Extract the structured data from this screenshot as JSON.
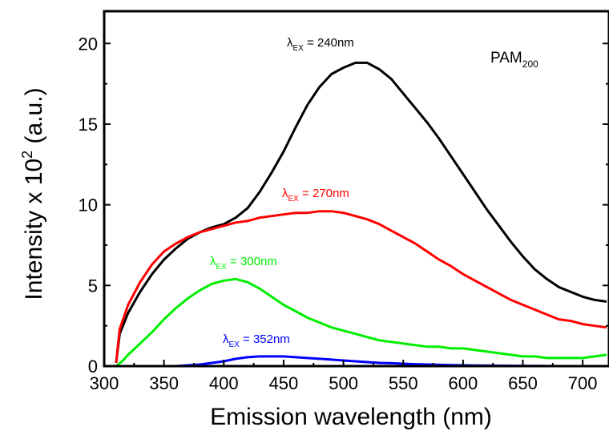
{
  "chart_data": {
    "type": "line",
    "title": "",
    "xlabel": "Emission wavelength (nm)",
    "ylabel_main": "Intensity x 10",
    "ylabel_sup": "2",
    "ylabel_units": " (a.u.)",
    "xlim": [
      300,
      722
    ],
    "ylim": [
      0,
      22
    ],
    "x_ticks": [
      300,
      350,
      400,
      450,
      500,
      550,
      600,
      650,
      700
    ],
    "y_ticks": [
      0,
      5,
      10,
      15,
      20
    ],
    "grid": false,
    "annotation": {
      "main": "PAM",
      "sub": "200"
    },
    "series": [
      {
        "name": "λEX = 240nm",
        "label_prefix": "λ",
        "label_sub": "EX",
        "label_suffix": " = 240nm",
        "color": "#000000",
        "x": [
          310,
          313,
          320,
          330,
          340,
          350,
          360,
          370,
          380,
          390,
          400,
          410,
          420,
          430,
          440,
          450,
          460,
          470,
          480,
          490,
          500,
          510,
          520,
          530,
          540,
          550,
          560,
          570,
          580,
          590,
          600,
          610,
          620,
          630,
          640,
          650,
          660,
          670,
          680,
          690,
          700,
          710,
          720
        ],
        "y": [
          0.2,
          2.0,
          3.3,
          4.6,
          5.7,
          6.6,
          7.3,
          7.9,
          8.3,
          8.6,
          8.8,
          9.2,
          9.8,
          10.8,
          12.0,
          13.3,
          14.8,
          16.2,
          17.3,
          18.1,
          18.5,
          18.8,
          18.8,
          18.4,
          17.8,
          16.9,
          16.0,
          15.1,
          14.1,
          13.0,
          11.9,
          10.8,
          9.7,
          8.7,
          7.7,
          6.8,
          6.0,
          5.4,
          4.9,
          4.6,
          4.3,
          4.1,
          4.0
        ]
      },
      {
        "name": "λEX = 270nm",
        "label_prefix": "λ",
        "label_sub": "EX",
        "label_suffix": " = 270nm",
        "color": "#ff0000",
        "x": [
          310,
          313,
          320,
          330,
          340,
          350,
          360,
          370,
          380,
          390,
          400,
          410,
          420,
          430,
          440,
          450,
          460,
          470,
          480,
          490,
          500,
          510,
          520,
          530,
          540,
          550,
          560,
          570,
          580,
          590,
          600,
          610,
          620,
          630,
          640,
          650,
          660,
          670,
          680,
          690,
          700,
          710,
          720
        ],
        "y": [
          0.2,
          2.3,
          3.8,
          5.2,
          6.3,
          7.1,
          7.6,
          8.0,
          8.3,
          8.5,
          8.7,
          8.9,
          9.0,
          9.2,
          9.3,
          9.4,
          9.5,
          9.5,
          9.6,
          9.6,
          9.5,
          9.3,
          9.1,
          8.8,
          8.4,
          8.0,
          7.6,
          7.1,
          6.6,
          6.2,
          5.7,
          5.3,
          4.9,
          4.5,
          4.1,
          3.8,
          3.5,
          3.2,
          2.9,
          2.8,
          2.6,
          2.5,
          2.4
        ]
      },
      {
        "name": "λEX = 300nm",
        "label_prefix": "λ",
        "label_sub": "EX",
        "label_suffix": " = 300nm",
        "color": "#00ee00",
        "x": [
          310,
          315,
          320,
          330,
          340,
          350,
          360,
          370,
          380,
          390,
          400,
          410,
          420,
          430,
          440,
          450,
          460,
          470,
          480,
          490,
          500,
          510,
          520,
          530,
          540,
          550,
          560,
          570,
          580,
          590,
          600,
          610,
          620,
          630,
          640,
          650,
          660,
          670,
          680,
          690,
          700,
          710,
          720
        ],
        "y": [
          0.0,
          0.3,
          0.7,
          1.4,
          2.1,
          2.9,
          3.6,
          4.2,
          4.7,
          5.1,
          5.3,
          5.4,
          5.2,
          4.8,
          4.3,
          3.8,
          3.4,
          3.0,
          2.7,
          2.4,
          2.2,
          2.0,
          1.8,
          1.6,
          1.5,
          1.4,
          1.3,
          1.2,
          1.2,
          1.1,
          1.1,
          1.0,
          0.9,
          0.8,
          0.7,
          0.6,
          0.6,
          0.5,
          0.5,
          0.5,
          0.5,
          0.6,
          0.7
        ]
      },
      {
        "name": "λEX = 352nm",
        "label_prefix": "λ",
        "label_sub": "EX",
        "label_suffix": " = 352nm",
        "color": "#0000ff",
        "x": [
          360,
          370,
          380,
          390,
          400,
          410,
          420,
          430,
          440,
          450,
          460,
          470,
          480,
          490,
          500,
          510,
          520,
          530,
          540,
          550,
          560,
          570,
          580,
          590,
          600,
          610,
          620,
          640,
          660,
          680,
          700,
          720
        ],
        "y": [
          0.0,
          0.05,
          0.1,
          0.2,
          0.3,
          0.45,
          0.55,
          0.6,
          0.6,
          0.6,
          0.55,
          0.5,
          0.45,
          0.4,
          0.35,
          0.3,
          0.25,
          0.2,
          0.18,
          0.15,
          0.12,
          0.1,
          0.08,
          0.06,
          0.05,
          0.04,
          0.03,
          0.02,
          0.01,
          0.0,
          0.0,
          0.0
        ]
      }
    ]
  }
}
